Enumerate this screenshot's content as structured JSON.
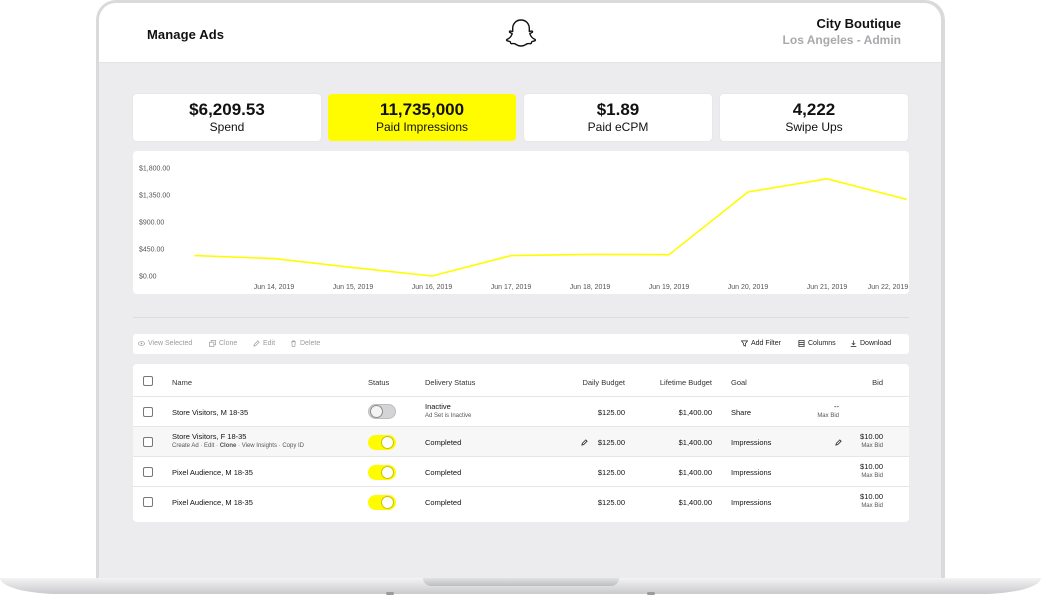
{
  "header": {
    "title": "Manage Ads",
    "account_name": "City Boutique",
    "account_location": "Los Angeles - Admin"
  },
  "stats": [
    {
      "value": "$6,209.53",
      "label": "Spend",
      "active": false
    },
    {
      "value": "11,735,000",
      "label": "Paid Impressions",
      "active": true
    },
    {
      "value": "$1.89",
      "label": "Paid eCPM",
      "active": false
    },
    {
      "value": "4,222",
      "label": "Swipe Ups",
      "active": false
    }
  ],
  "colors": {
    "accent": "#fffc00",
    "background": "#ececee"
  },
  "chart_data": {
    "type": "line",
    "x": [
      "",
      "Jun 14, 2019",
      "Jun 15, 2019",
      "Jun 16, 2019",
      "Jun 17, 2019",
      "Jun 18, 2019",
      "Jun 19, 2019",
      "Jun 20, 2019",
      "Jun 21, 2019",
      "Jun 22, 2019"
    ],
    "series": [
      {
        "values": [
          340,
          290,
          140,
          0,
          340,
          360,
          355,
          1400,
          1620,
          1280
        ]
      }
    ],
    "y_ticks": [
      "$1,800.00",
      "$1,350.00",
      "$900.00",
      "$450.00",
      "$0.00"
    ],
    "ylim": [
      0,
      1800
    ],
    "grid": false,
    "color": "#fffc00"
  },
  "toolbar": {
    "view_selected": "View Selected",
    "clone": "Clone",
    "edit": "Edit",
    "delete": "Delete",
    "add_filter": "Add Filter",
    "columns": "Columns",
    "download": "Download"
  },
  "table": {
    "headers": {
      "name": "Name",
      "status": "Status",
      "delivery": "Delivery Status",
      "daily": "Daily Budget",
      "lifetime": "Lifetime Budget",
      "goal": "Goal",
      "bid": "Bid"
    },
    "rows": [
      {
        "name": "Store Visitors, M 18-35",
        "status": "off",
        "delivery": "Inactive",
        "delivery_sub": "Ad Set is Inactive",
        "daily": "$125.00",
        "lifetime": "$1,400.00",
        "goal": "Share",
        "bid": "--",
        "bid_sub": "Max Bid"
      },
      {
        "name": "Store Visitors, F 18-35",
        "actions": [
          "Create Ad",
          "Edit",
          "Clone",
          "View Insights",
          "Copy ID"
        ],
        "status": "on",
        "delivery": "Completed",
        "daily": "$125.00",
        "lifetime": "$1,400.00",
        "goal": "Impressions",
        "bid": "$10.00",
        "bid_sub": "Max Bid"
      },
      {
        "name": "Pixel Audience, M 18-35",
        "status": "on",
        "delivery": "Completed",
        "daily": "$125.00",
        "lifetime": "$1,400.00",
        "goal": "Impressions",
        "bid": "$10.00",
        "bid_sub": "Max Bid"
      },
      {
        "name": "Pixel Audience, M 18-35",
        "status": "on",
        "delivery": "Completed",
        "daily": "$125.00",
        "lifetime": "$1,400.00",
        "goal": "Impressions",
        "bid": "$10.00",
        "bid_sub": "Max Bid"
      }
    ]
  }
}
